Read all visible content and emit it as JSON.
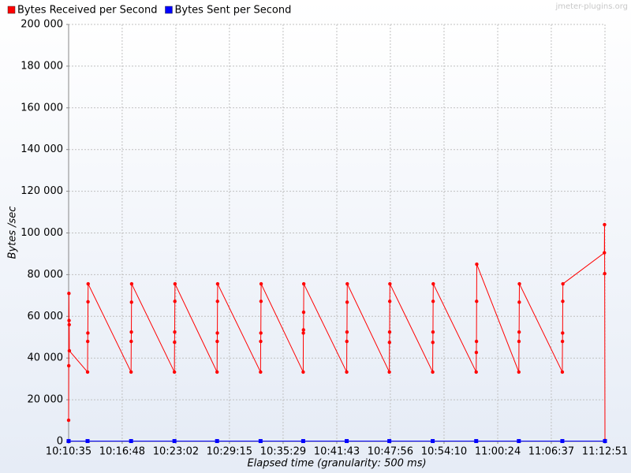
{
  "chart_data": {
    "type": "line",
    "watermark": "jmeter-plugins.org",
    "xlabel": "Elapsed time (granularity: 500 ms)",
    "ylabel": "Bytes /sec",
    "xlim": [
      0,
      3736
    ],
    "xticks": [
      {
        "value": 0,
        "label": "10:10:35"
      },
      {
        "value": 373,
        "label": "10:16:48"
      },
      {
        "value": 747,
        "label": "10:23:02"
      },
      {
        "value": 1120,
        "label": "10:29:15"
      },
      {
        "value": 1494,
        "label": "10:35:29"
      },
      {
        "value": 1868,
        "label": "10:41:43"
      },
      {
        "value": 2241,
        "label": "10:47:56"
      },
      {
        "value": 2615,
        "label": "10:54:10"
      },
      {
        "value": 2989,
        "label": "11:00:24"
      },
      {
        "value": 3362,
        "label": "11:06:37"
      },
      {
        "value": 3736,
        "label": "11:12:51"
      }
    ],
    "ylim": [
      0,
      200000
    ],
    "yticks": [
      {
        "value": 0,
        "label": "0"
      },
      {
        "value": 20000,
        "label": "20 000"
      },
      {
        "value": 40000,
        "label": "40 000"
      },
      {
        "value": 60000,
        "label": "60 000"
      },
      {
        "value": 80000,
        "label": "80 000"
      },
      {
        "value": 100000,
        "label": "100 000"
      },
      {
        "value": 120000,
        "label": "120 000"
      },
      {
        "value": 140000,
        "label": "140 000"
      },
      {
        "value": 160000,
        "label": "160 000"
      },
      {
        "value": 180000,
        "label": "180 000"
      },
      {
        "value": 200000,
        "label": "200 000"
      }
    ],
    "grid": true,
    "legend": "top-left",
    "series": [
      {
        "name": "Bytes Received per Second",
        "color": "#ff0000",
        "marker": "circle",
        "x": [
          0,
          1,
          2,
          3,
          4,
          5,
          132,
          133,
          134,
          135,
          136,
          435,
          436,
          437,
          438,
          439,
          737,
          738,
          739,
          740,
          741,
          1034,
          1035,
          1036,
          1037,
          1038,
          1337,
          1338,
          1339,
          1340,
          1341,
          1634,
          1635,
          1636,
          1637,
          1638,
          1937,
          1938,
          1939,
          1940,
          1941,
          2234,
          2235,
          2236,
          2237,
          2238,
          2536,
          2537,
          2538,
          2539,
          2540,
          2839,
          2840,
          2841,
          2842,
          2843,
          3136,
          3137,
          3138,
          3139,
          3140,
          3439,
          3440,
          3441,
          3442,
          3443,
          3732,
          3733,
          3734,
          3736
        ],
        "values": [
          10200,
          36300,
          71000,
          58000,
          56000,
          43500,
          33300,
          48000,
          52000,
          67000,
          75600,
          33300,
          48000,
          52500,
          66800,
          75600,
          33300,
          47600,
          52500,
          67200,
          75600,
          33300,
          48000,
          52000,
          67200,
          75600,
          33300,
          48000,
          52000,
          67200,
          75600,
          33300,
          52000,
          53500,
          62000,
          75600,
          33300,
          48000,
          52500,
          66800,
          75600,
          33300,
          47500,
          52500,
          67200,
          75600,
          33300,
          47500,
          52500,
          67200,
          75600,
          33300,
          42700,
          48000,
          67200,
          85000,
          33300,
          48000,
          52500,
          66800,
          75600,
          33300,
          48000,
          52000,
          67200,
          75600,
          90500,
          104000,
          80500,
          500
        ]
      },
      {
        "name": "Bytes Sent per Second",
        "color": "#0000ff",
        "marker": "square",
        "x": [
          0,
          132,
          435,
          737,
          1034,
          1337,
          1634,
          1937,
          2234,
          2536,
          2839,
          3136,
          3439,
          3736
        ],
        "values": [
          200,
          200,
          200,
          200,
          200,
          200,
          200,
          200,
          200,
          200,
          200,
          200,
          200,
          200
        ]
      }
    ]
  }
}
